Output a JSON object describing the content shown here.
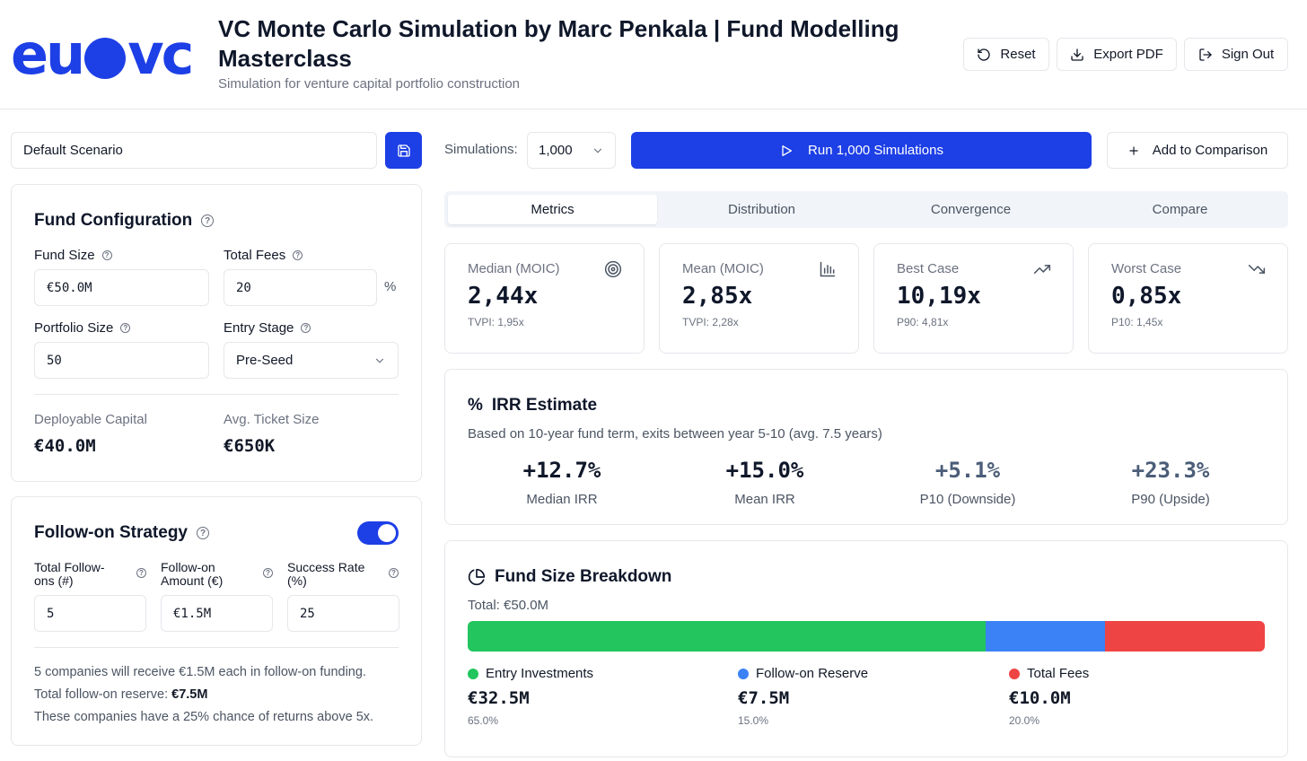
{
  "header": {
    "logo_text": "euovc",
    "title": "VC Monte Carlo Simulation by Marc Penkala | Fund Modelling Masterclass",
    "subtitle": "Simulation for venture capital portfolio construction",
    "buttons": {
      "reset": "Reset",
      "export": "Export PDF",
      "signout": "Sign Out"
    }
  },
  "toolbar": {
    "scenario_name": "Default Scenario",
    "simulations_label": "Simulations:",
    "simulations_value": "1,000",
    "run_label": "Run 1,000 Simulations",
    "compare_label": "Add to Comparison"
  },
  "fund_config": {
    "title": "Fund Configuration",
    "fund_size_label": "Fund Size",
    "fund_size_value": "€50.0M",
    "total_fees_label": "Total Fees",
    "total_fees_value": "20",
    "total_fees_unit": "%",
    "portfolio_size_label": "Portfolio Size",
    "portfolio_size_value": "50",
    "entry_stage_label": "Entry Stage",
    "entry_stage_value": "Pre-Seed",
    "deployable_label": "Deployable Capital",
    "deployable_value": "€40.0M",
    "ticket_label": "Avg. Ticket Size",
    "ticket_value": "€650K"
  },
  "follow_on": {
    "title": "Follow-on Strategy",
    "enabled": true,
    "count_label_1": "Total Follow-",
    "count_label_2": "ons (#)",
    "count_value": "5",
    "amount_label_1": "Follow-on",
    "amount_label_2": "Amount (€)",
    "amount_value": "€1.5M",
    "rate_label_1": "Success Rate",
    "rate_label_2": "(%)",
    "rate_value": "25",
    "note_1": "5 companies will receive €1.5M each in follow-on funding.",
    "note_2_prefix": "Total follow-on reserve: ",
    "note_2_value": "€7.5M",
    "note_3": "These companies have a 25% chance of returns above 5x."
  },
  "tabs": [
    "Metrics",
    "Distribution",
    "Convergence",
    "Compare"
  ],
  "stats": [
    {
      "label": "Median (MOIC)",
      "value": "2,44x",
      "sub": "TVPI: 1,95x",
      "icon": "target-icon"
    },
    {
      "label": "Mean (MOIC)",
      "value": "2,85x",
      "sub": "TVPI: 2,28x",
      "icon": "bar-chart-icon"
    },
    {
      "label": "Best Case",
      "value": "10,19x",
      "sub": "P90: 4,81x",
      "icon": "trending-up-icon"
    },
    {
      "label": "Worst Case",
      "value": "0,85x",
      "sub": "P10: 1,45x",
      "icon": "trending-down-icon"
    }
  ],
  "irr": {
    "title": "IRR Estimate",
    "description": "Based on 10-year fund term, exits between year 5-10 (avg. 7.5 years)",
    "items": [
      {
        "value": "+12.7%",
        "label": "Median IRR"
      },
      {
        "value": "+15.0%",
        "label": "Mean IRR"
      },
      {
        "value": "+5.1%",
        "label": "P10 (Downside)"
      },
      {
        "value": "+23.3%",
        "label": "P90 (Upside)"
      }
    ]
  },
  "breakdown": {
    "title": "Fund Size Breakdown",
    "total": "Total: €50.0M",
    "segments": [
      {
        "label": "Entry Investments",
        "value": "€32.5M",
        "pct": "65.0%",
        "share": 65,
        "color": "#22c55e"
      },
      {
        "label": "Follow-on Reserve",
        "value": "€7.5M",
        "pct": "15.0%",
        "share": 15,
        "color": "#3b82f6"
      },
      {
        "label": "Total Fees",
        "value": "€10.0M",
        "pct": "20.0%",
        "share": 20,
        "color": "#ef4444"
      }
    ]
  },
  "colors": {
    "accent": "#1d3fe6",
    "muted_value": "#4b5d78"
  }
}
